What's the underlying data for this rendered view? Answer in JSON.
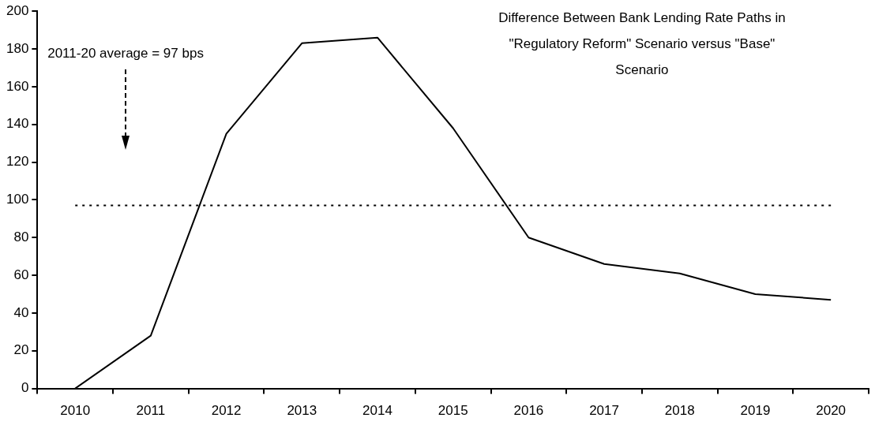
{
  "chart_data": {
    "type": "line",
    "title": "Difference Between Bank Lending Rate Paths in \"Regulatory Reform\" Scenario versus \"Base\" Scenario",
    "categories": [
      "2010",
      "2011",
      "2012",
      "2013",
      "2014",
      "2015",
      "2016",
      "2017",
      "2018",
      "2019",
      "2020"
    ],
    "series": [
      {
        "color": "#000000",
        "values": [
          0,
          28,
          135,
          183,
          186,
          138,
          80,
          66,
          61,
          50,
          47
        ]
      }
    ],
    "ylim": [
      0,
      200
    ],
    "yticks": [
      0,
      20,
      40,
      60,
      80,
      100,
      120,
      140,
      160,
      180,
      200
    ],
    "ref_lines": [
      {
        "axis": "y",
        "value": 97,
        "color": "#000000",
        "line_style": "dotted"
      }
    ],
    "annotations": [
      "2011-20 average = 97 bps"
    ],
    "grid": false,
    "legend": false,
    "marker": "none",
    "line_style": "solid"
  }
}
